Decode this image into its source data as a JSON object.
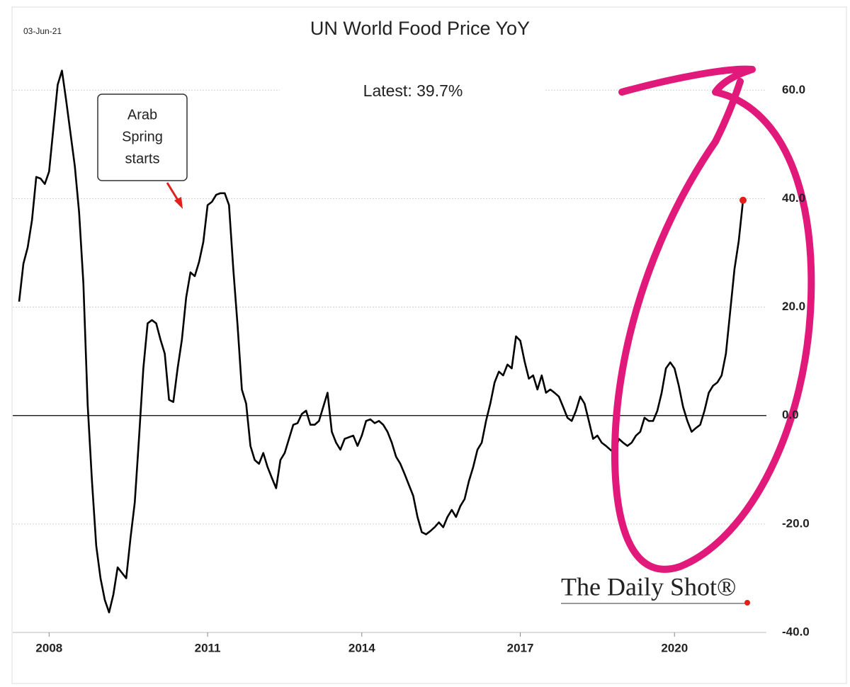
{
  "chart_data": {
    "type": "line",
    "title": "UN World Food Price YoY",
    "date_label": "03-Jun-21",
    "latest_label": "Latest:  39.7%",
    "annotation_lines": [
      "Arab",
      "Spring",
      "starts"
    ],
    "source": "The Daily Shot®",
    "color": "#000000",
    "last_point_color": "#e0201b",
    "grid": true,
    "categories": [
      null,
      null,
      null,
      null,
      null,
      null,
      null,
      "2008",
      null,
      null,
      null,
      null,
      null,
      null,
      null,
      null,
      null,
      null,
      null,
      null,
      null,
      null,
      null,
      null,
      null,
      null,
      null,
      null,
      null,
      null,
      null,
      null,
      null,
      null,
      null,
      null,
      null,
      null,
      null,
      null,
      null,
      null,
      null,
      null,
      "2011",
      null,
      null,
      null,
      null,
      null,
      null,
      null,
      null,
      null,
      null,
      null,
      null,
      null,
      null,
      null,
      null,
      null,
      null,
      null,
      null,
      null,
      null,
      null,
      null,
      null,
      null,
      null,
      null,
      null,
      null,
      null,
      null,
      null,
      null,
      null,
      "2014",
      null,
      null,
      null,
      null,
      null,
      null,
      null,
      null,
      null,
      null,
      null,
      null,
      null,
      null,
      null,
      null,
      null,
      null,
      null,
      null,
      null,
      null,
      null,
      null,
      null,
      null,
      null,
      null,
      null,
      null,
      null,
      null,
      null,
      null,
      null,
      null,
      "2017",
      null,
      null,
      null,
      null,
      null,
      null,
      null,
      null,
      null,
      null,
      null,
      null,
      null,
      null,
      null,
      null,
      null,
      null,
      null,
      null,
      null,
      null,
      null,
      null,
      null,
      null,
      null,
      null,
      null,
      null,
      null,
      null,
      null,
      null,
      null,
      "2020",
      null,
      null,
      null,
      null,
      null,
      null,
      null,
      null,
      null,
      null,
      null,
      null,
      null,
      null,
      null,
      null
    ],
    "values": [
      21,
      28,
      31,
      36,
      44,
      43.7,
      42.7,
      45,
      53,
      61,
      63.6,
      58,
      52,
      46,
      37.5,
      24.4,
      2,
      -12,
      -24,
      -30,
      -34,
      -36.3,
      -33,
      -28,
      -29,
      -30,
      -22.6,
      -16,
      -4,
      8.7,
      17,
      17.6,
      17,
      14,
      11.4,
      2.9,
      2.5,
      8.7,
      14,
      21.8,
      26.4,
      25.7,
      28.3,
      32,
      38.8,
      39.4,
      40.7,
      41,
      41,
      38.8,
      27,
      16.6,
      4.8,
      2.2,
      -5.6,
      -8.2,
      -8.9,
      -6.9,
      -9.5,
      -11.5,
      -13.4,
      -8.2,
      -6.9,
      -4.3,
      -1.7,
      -1.4,
      0.3,
      0.9,
      -1.7,
      -1.7,
      -1,
      1.6,
      4.2,
      -3,
      -5,
      -6.3,
      -4.3,
      -4,
      -3.7,
      -5.6,
      -3.7,
      -1,
      -0.7,
      -1.4,
      -1,
      -1.7,
      -3,
      -5,
      -7.6,
      -8.9,
      -10.8,
      -12.8,
      -14.8,
      -18.7,
      -21.5,
      -21.9,
      -21.3,
      -20.6,
      -19.7,
      -20.6,
      -18.7,
      -17.4,
      -18.7,
      -16.7,
      -15.4,
      -12.1,
      -9.5,
      -6.3,
      -5,
      -1,
      2.2,
      6.1,
      8.1,
      7.4,
      9.4,
      8.7,
      14.6,
      13.8,
      10,
      6.8,
      7.4,
      4.8,
      7.4,
      4.2,
      4.8,
      4.2,
      3.5,
      1.6,
      -0.4,
      -1,
      0.9,
      3.5,
      2.2,
      -1,
      -4.3,
      -3.7,
      -5,
      -5.6,
      -6.3,
      -6.9,
      -4.3,
      -5,
      -5.6,
      -5,
      -3.7,
      -3,
      -0.4,
      -1,
      -1,
      0.9,
      4.2,
      8.7,
      9.8,
      8.7,
      5.5,
      1.6,
      -1,
      -3,
      -2.3,
      -1.7,
      0.9,
      4.2,
      5.5,
      6.1,
      7.4,
      11.4,
      19.2,
      27,
      32.2,
      39.7
    ],
    "ylim": [
      -40,
      65
    ],
    "yticks": [
      {
        "value": 60,
        "label": "60.0"
      },
      {
        "value": 40,
        "label": "40.0"
      },
      {
        "value": 20,
        "label": "20.0"
      },
      {
        "value": 0,
        "label": "0.0"
      },
      {
        "value": -20,
        "label": "-20.0"
      },
      {
        "value": -40,
        "label": "-40.0"
      }
    ]
  }
}
